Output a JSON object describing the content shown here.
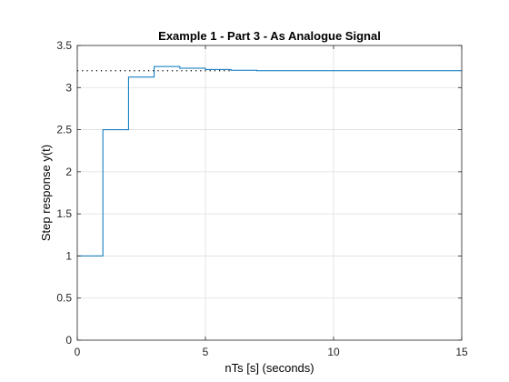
{
  "chart_data": {
    "type": "line",
    "title": "Example 1 - Part 3 - As Analogue Signal",
    "xlabel": "nTs [s] (seconds)",
    "ylabel": "Step response y(t)",
    "xlim": [
      0,
      15
    ],
    "ylim": [
      0,
      3.5
    ],
    "grid": true,
    "x_ticks": [
      0,
      5,
      10,
      15
    ],
    "x_tick_labels": [
      "0",
      "5",
      "10",
      "15"
    ],
    "y_ticks": [
      0,
      0.5,
      1,
      1.5,
      2,
      2.5,
      3,
      3.5
    ],
    "y_tick_labels": [
      "0",
      "0.5",
      "1",
      "1.5",
      "2",
      "2.5",
      "3",
      "3.5"
    ],
    "series": [
      {
        "style": "stairs",
        "color": "#0072BD",
        "x": [
          0,
          1,
          2,
          3,
          4,
          5,
          6,
          7,
          8,
          9,
          10,
          11,
          12,
          13,
          14,
          15
        ],
        "values": [
          1.0,
          2.5,
          3.125,
          3.25,
          3.23,
          3.215,
          3.205,
          3.2,
          3.2,
          3.2,
          3.2,
          3.2,
          3.2,
          3.2,
          3.2,
          3.2
        ]
      },
      {
        "style": "dotted",
        "color": "#000000",
        "x": [
          0,
          6
        ],
        "values": [
          3.2,
          3.2
        ]
      }
    ]
  }
}
